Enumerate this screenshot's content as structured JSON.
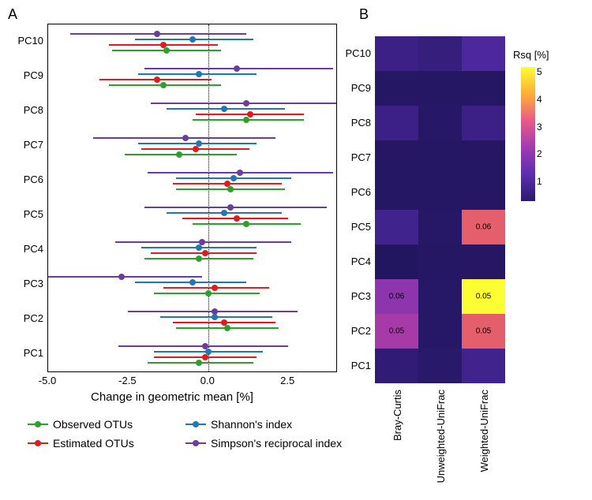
{
  "panelA_label": "A",
  "panelB_label": "B",
  "x_axis_title": "Change in geometric mean [%]",
  "x_ticks": [
    -5.0,
    -2.5,
    0.0,
    2.5
  ],
  "x_min": -5.0,
  "x_max": 4.0,
  "pc_labels": [
    "PC10",
    "PC9",
    "PC8",
    "PC7",
    "PC6",
    "PC5",
    "PC4",
    "PC3",
    "PC2",
    "PC1"
  ],
  "series": {
    "observed": {
      "label": "Observed OTUs",
      "color": "#2ca02c"
    },
    "shannon": {
      "label": "Shannon's index",
      "color": "#1f77b4"
    },
    "estimated": {
      "label": "Estimated OTUs",
      "color": "#e31a1c"
    },
    "simpson": {
      "label": "Simpson's reciprocal index",
      "color": "#6a3d9a"
    }
  },
  "forest_data": {
    "PC10": {
      "simpson": {
        "lo": -4.3,
        "pt": -1.6,
        "hi": 1.2
      },
      "shannon": {
        "lo": -2.3,
        "pt": -0.5,
        "hi": 1.4
      },
      "estimated": {
        "lo": -3.1,
        "pt": -1.4,
        "hi": 0.3
      },
      "observed": {
        "lo": -3.0,
        "pt": -1.3,
        "hi": 0.4
      }
    },
    "PC9": {
      "simpson": {
        "lo": -2.0,
        "pt": 0.9,
        "hi": 3.9
      },
      "shannon": {
        "lo": -2.2,
        "pt": -0.3,
        "hi": 1.5
      },
      "estimated": {
        "lo": -3.4,
        "pt": -1.6,
        "hi": 0.1
      },
      "observed": {
        "lo": -3.1,
        "pt": -1.4,
        "hi": 0.4
      }
    },
    "PC8": {
      "simpson": {
        "lo": -1.8,
        "pt": 1.2,
        "hi": 4.0
      },
      "shannon": {
        "lo": -1.3,
        "pt": 0.5,
        "hi": 2.4
      },
      "estimated": {
        "lo": -0.4,
        "pt": 1.3,
        "hi": 3.0
      },
      "observed": {
        "lo": -0.5,
        "pt": 1.2,
        "hi": 3.0
      }
    },
    "PC7": {
      "simpson": {
        "lo": -3.6,
        "pt": -0.7,
        "hi": 2.1
      },
      "shannon": {
        "lo": -2.2,
        "pt": -0.3,
        "hi": 1.5
      },
      "estimated": {
        "lo": -2.1,
        "pt": -0.4,
        "hi": 1.3
      },
      "observed": {
        "lo": -2.6,
        "pt": -0.9,
        "hi": 0.9
      }
    },
    "PC6": {
      "simpson": {
        "lo": -1.9,
        "pt": 1.0,
        "hi": 3.9
      },
      "shannon": {
        "lo": -1.0,
        "pt": 0.8,
        "hi": 2.6
      },
      "estimated": {
        "lo": -1.1,
        "pt": 0.6,
        "hi": 2.3
      },
      "observed": {
        "lo": -1.0,
        "pt": 0.7,
        "hi": 2.4
      }
    },
    "PC5": {
      "simpson": {
        "lo": -2.0,
        "pt": 0.7,
        "hi": 3.7
      },
      "shannon": {
        "lo": -1.3,
        "pt": 0.5,
        "hi": 2.3
      },
      "estimated": {
        "lo": -0.8,
        "pt": 0.9,
        "hi": 2.5
      },
      "observed": {
        "lo": -0.5,
        "pt": 1.2,
        "hi": 2.9
      }
    },
    "PC4": {
      "simpson": {
        "lo": -2.9,
        "pt": -0.2,
        "hi": 2.6
      },
      "shannon": {
        "lo": -2.1,
        "pt": -0.3,
        "hi": 1.5
      },
      "estimated": {
        "lo": -1.8,
        "pt": -0.1,
        "hi": 1.5
      },
      "observed": {
        "lo": -2.0,
        "pt": -0.3,
        "hi": 1.4
      }
    },
    "PC3": {
      "simpson": {
        "lo": -5.3,
        "pt": -2.7,
        "hi": -0.2
      },
      "shannon": {
        "lo": -2.3,
        "pt": -0.5,
        "hi": 1.2
      },
      "estimated": {
        "lo": -1.4,
        "pt": 0.2,
        "hi": 1.9
      },
      "observed": {
        "lo": -1.7,
        "pt": 0.0,
        "hi": 1.6
      }
    },
    "PC2": {
      "simpson": {
        "lo": -2.5,
        "pt": 0.2,
        "hi": 2.8
      },
      "shannon": {
        "lo": -1.5,
        "pt": 0.2,
        "hi": 2.0
      },
      "estimated": {
        "lo": -1.1,
        "pt": 0.5,
        "hi": 2.1
      },
      "observed": {
        "lo": -1.0,
        "pt": 0.6,
        "hi": 2.2
      }
    },
    "PC1": {
      "simpson": {
        "lo": -2.8,
        "pt": -0.1,
        "hi": 2.5
      },
      "shannon": {
        "lo": -1.7,
        "pt": 0.0,
        "hi": 1.7
      },
      "estimated": {
        "lo": -1.7,
        "pt": -0.1,
        "hi": 1.5
      },
      "observed": {
        "lo": -1.9,
        "pt": -0.3,
        "hi": 1.4
      }
    }
  },
  "heatmap": {
    "columns": [
      "Bray-Curtis",
      "Unweighted-UniFrac",
      "Weighted-UniFrac"
    ],
    "rows": [
      "PC10",
      "PC9",
      "PC8",
      "PC7",
      "PC6",
      "PC5",
      "PC4",
      "PC3",
      "PC2",
      "PC1"
    ],
    "values": [
      [
        0.9,
        0.8,
        1.2
      ],
      [
        0.3,
        0.3,
        0.3
      ],
      [
        0.9,
        0.4,
        0.9
      ],
      [
        0.3,
        0.3,
        0.3
      ],
      [
        0.3,
        0.3,
        0.3
      ],
      [
        1.0,
        0.4,
        3.2
      ],
      [
        0.2,
        0.3,
        0.3
      ],
      [
        1.9,
        0.4,
        5.0
      ],
      [
        2.2,
        0.4,
        3.2
      ],
      [
        0.7,
        0.5,
        1.0
      ]
    ],
    "annotations": [
      {
        "row": 5,
        "col": 2,
        "text": "0.06"
      },
      {
        "row": 7,
        "col": 0,
        "text": "0.06"
      },
      {
        "row": 7,
        "col": 2,
        "text": "0.05"
      },
      {
        "row": 8,
        "col": 0,
        "text": "0.05"
      },
      {
        "row": 8,
        "col": 2,
        "text": "0.05"
      }
    ],
    "colorbar_title": "Rsq [%]",
    "colorbar_ticks": [
      5,
      4,
      3,
      2,
      1
    ]
  }
}
